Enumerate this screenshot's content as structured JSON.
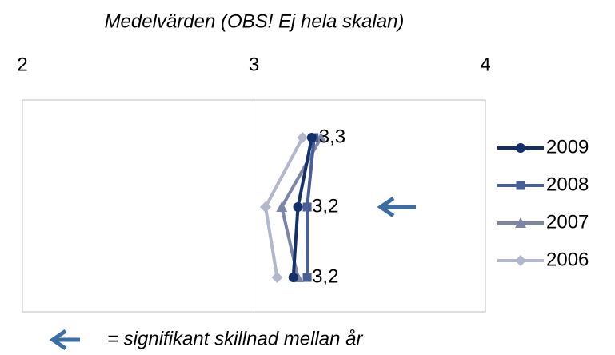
{
  "chart_data": {
    "type": "line",
    "title": "Medelvärden (OBS! Ej hela skalan)",
    "annotation": "= signifikant skillnad mellan år",
    "categories": [
      null,
      null,
      null
    ],
    "xlim": [
      2,
      4
    ],
    "xticks": [
      2,
      3,
      4
    ],
    "grid": true,
    "legend": "right",
    "series": [
      {
        "name": "2009",
        "color": "#13306a",
        "marker": "circle",
        "values": [
          3.25,
          3.19,
          3.17
        ],
        "value_labels": [
          "3,3",
          "3,2",
          "3,2"
        ]
      },
      {
        "name": "2008",
        "color": "#4a5f94",
        "marker": "square",
        "values": [
          3.26,
          3.23,
          3.23
        ]
      },
      {
        "name": "2007",
        "color": "#7b85a8",
        "marker": "triangle",
        "values": [
          3.29,
          3.12,
          3.19
        ]
      },
      {
        "name": "2006",
        "color": "#b1b7cc",
        "marker": "diamond",
        "values": [
          3.21,
          3.05,
          3.1
        ]
      }
    ]
  }
}
